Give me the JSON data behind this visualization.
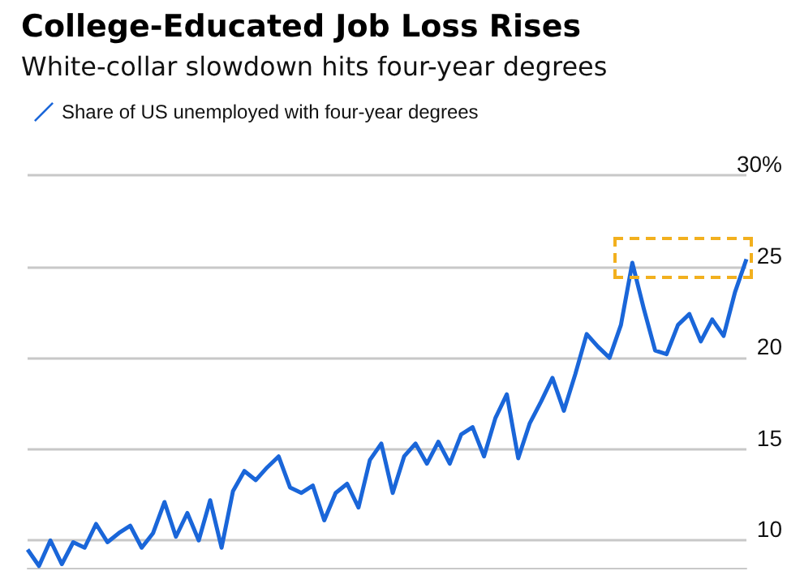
{
  "chart_data": {
    "type": "line",
    "title": "College-Educated Job Loss Rises",
    "subtitle": "White-collar slowdown hits four-year degrees",
    "categories": [
      null,
      null,
      null,
      null,
      null,
      null,
      null,
      null,
      null,
      null,
      null,
      null,
      null,
      null,
      null,
      null,
      null,
      null,
      null,
      null,
      null,
      null,
      null,
      null,
      null,
      null,
      null,
      null,
      null,
      null,
      null,
      null,
      null,
      null,
      null,
      null,
      null,
      null,
      null,
      null,
      null,
      null,
      null,
      null,
      null,
      null,
      null,
      null,
      null,
      null,
      null,
      null,
      null,
      null,
      null,
      null,
      null,
      null,
      null,
      null,
      null,
      null,
      null,
      null
    ],
    "series": [
      {
        "name": "Share of US unemployed with four-year degrees",
        "color": "#1a66d9",
        "values": [
          9.5,
          8.6,
          10,
          8.7,
          9.9,
          9.6,
          10.9,
          9.9,
          10.4,
          10.8,
          9.6,
          10.4,
          12.1,
          10.2,
          11.5,
          10,
          12.2,
          9.6,
          12.7,
          13.8,
          13.3,
          14,
          14.6,
          12.9,
          12.6,
          13,
          11.1,
          12.6,
          13.1,
          11.8,
          14.4,
          15.3,
          12.6,
          14.6,
          15.3,
          14.2,
          15.4,
          14.2,
          15.8,
          16.2,
          14.6,
          16.7,
          18,
          14.5,
          16.4,
          17.6,
          18.9,
          17.1,
          19.1,
          21.3,
          20.6,
          20,
          21.8,
          25.2,
          22.7,
          20.4,
          20.2,
          21.8,
          22.4,
          20.9,
          22.1,
          21.2,
          23.6,
          25.4
        ]
      }
    ],
    "ylim": [
      8.5,
      30
    ],
    "yticks": [
      10,
      15,
      20,
      25,
      {
        "value": 30,
        "label": "30%"
      }
    ],
    "grid": "y",
    "legend": "top left",
    "line_style": "solid"
  }
}
